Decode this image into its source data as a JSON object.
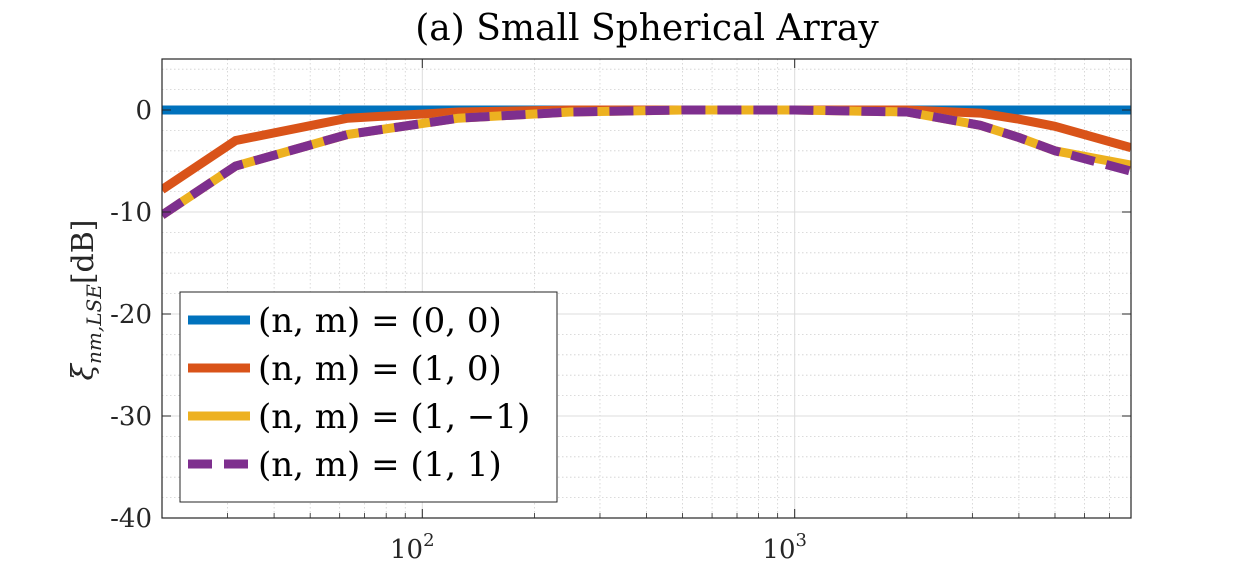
{
  "chart_data": {
    "type": "line",
    "title": "(a) Small Spherical Array",
    "ylabel": "ξ_{nm,LSE}[dB]",
    "ylabel_parts": {
      "main": "ξ",
      "sub": "nm,LSE",
      "rest": "[dB]"
    },
    "xlabel": "",
    "xscale": "log",
    "xlim": [
      20,
      8000
    ],
    "ylim": [
      -40,
      5
    ],
    "grid": true,
    "minor_grid": true,
    "legend_position": "bottom-left",
    "x_tick_labels": [
      {
        "value": 100,
        "base": "10",
        "exp": "2"
      },
      {
        "value": 1000,
        "base": "10",
        "exp": "3"
      }
    ],
    "y_ticks": [
      0,
      -10,
      -20,
      -30,
      -40
    ],
    "y_tick_labels": [
      "0",
      "-10",
      "-20",
      "-30",
      "-40"
    ],
    "x": [
      20,
      31.5,
      63,
      125,
      250,
      500,
      1000,
      2000,
      3150,
      4000,
      5000,
      8000
    ],
    "series": [
      {
        "name": "(n,m) = (0,0)",
        "label_text": "(n, m) = (0, 0)",
        "color": "#0072BD",
        "dash": "solid",
        "values": [
          0,
          0,
          0,
          0,
          0,
          0,
          0,
          0,
          0,
          0,
          0,
          0
        ]
      },
      {
        "name": "(n,m) = (1,0)",
        "label_text": "(n, m) = (1, 0)",
        "color": "#D95319",
        "dash": "solid",
        "values": [
          -7.8,
          -3.0,
          -0.8,
          -0.2,
          0,
          0,
          0,
          0,
          -0.3,
          -0.9,
          -1.6,
          -3.7
        ]
      },
      {
        "name": "(n,m) = (1,-1)",
        "label_text": "(n, m) = (1, −1)",
        "color": "#EDB120",
        "dash": "solid",
        "values": [
          -10.3,
          -5.5,
          -2.4,
          -0.8,
          -0.2,
          0,
          0,
          -0.2,
          -1.5,
          -2.7,
          -4.0,
          -5.4
        ]
      },
      {
        "name": "(n,m) = (1,1)",
        "label_text": "(n, m) = (1, 1)",
        "color": "#7E2F8E",
        "dash": "dashed",
        "values": [
          -10.3,
          -5.5,
          -2.4,
          -0.8,
          -0.2,
          0,
          0,
          -0.2,
          -1.5,
          -2.7,
          -4.0,
          -6.0
        ]
      }
    ]
  }
}
